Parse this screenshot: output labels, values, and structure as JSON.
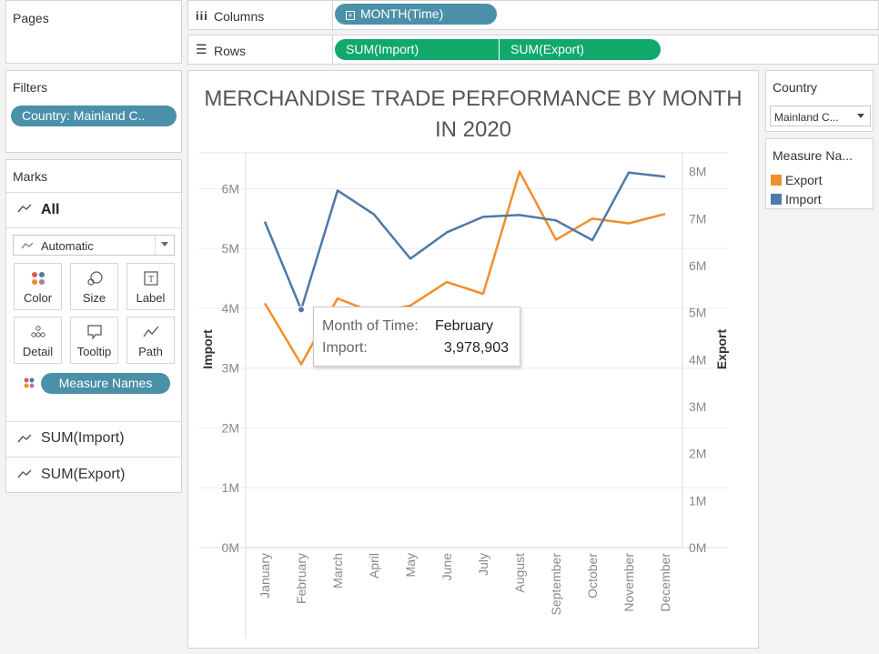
{
  "shelves": {
    "pages_label": "Pages",
    "columns_label": "Columns",
    "rows_label": "Rows",
    "columns_pill": "MONTH(Time)",
    "rows_pills": [
      "SUM(Import)",
      "SUM(Export)"
    ]
  },
  "filters": {
    "title": "Filters",
    "pill": "Country: Mainland C.."
  },
  "marks": {
    "title": "Marks",
    "all_label": "All",
    "mark_type": "Automatic",
    "buttons": [
      "Color",
      "Size",
      "Label",
      "Detail",
      "Tooltip",
      "Path"
    ],
    "measure_names_pill": "Measure Names",
    "measures": [
      "SUM(Import)",
      "SUM(Export)"
    ]
  },
  "country_filter": {
    "title": "Country",
    "value": "Mainland C..."
  },
  "legend": {
    "title": "Measure Na...",
    "items": [
      {
        "label": "Export",
        "color": "#f28e2b"
      },
      {
        "label": "Import",
        "color": "#4e79a7"
      }
    ]
  },
  "tooltip": {
    "row1_label": "Month of Time:",
    "row1_value": "February",
    "row2_label": "Import:",
    "row2_value": "3,978,903"
  },
  "chart_data": {
    "type": "line",
    "title": "MERCHANDISE TRADE PERFORMANCE BY MONTH IN 2020",
    "title_lines": [
      "MERCHANDISE TRADE PERFORMANCE BY MONTH",
      "IN 2020"
    ],
    "categories": [
      "January",
      "February",
      "March",
      "April",
      "May",
      "June",
      "July",
      "August",
      "September",
      "October",
      "November",
      "December"
    ],
    "ylabel_left": "Import",
    "ylabel_right": "Export",
    "left_axis": {
      "min": 0,
      "max": 6600000,
      "ticks": [
        0,
        1000000,
        2000000,
        3000000,
        4000000,
        5000000,
        6000000
      ],
      "tick_labels": [
        "0M",
        "1M",
        "2M",
        "3M",
        "4M",
        "5M",
        "6M"
      ]
    },
    "right_axis": {
      "min": 0,
      "max": 8400000,
      "ticks": [
        0,
        1000000,
        2000000,
        3000000,
        4000000,
        5000000,
        6000000,
        7000000,
        8000000
      ],
      "tick_labels": [
        "0M",
        "1M",
        "2M",
        "3M",
        "4M",
        "5M",
        "6M",
        "7M",
        "8M"
      ]
    },
    "grid": true,
    "series": [
      {
        "name": "Import",
        "axis": "left",
        "color": "#4e79a7",
        "values": [
          5450000,
          3978903,
          5970000,
          5570000,
          4830000,
          5270000,
          5530000,
          5560000,
          5470000,
          5140000,
          6270000,
          6200000
        ]
      },
      {
        "name": "Export",
        "axis": "right",
        "color": "#f28e2b",
        "values": [
          5200000,
          3900000,
          5300000,
          5000000,
          5150000,
          5650000,
          5400000,
          8000000,
          6550000,
          7000000,
          6900000,
          7100000
        ]
      }
    ],
    "highlight": {
      "series": "Import",
      "index": 1
    }
  }
}
